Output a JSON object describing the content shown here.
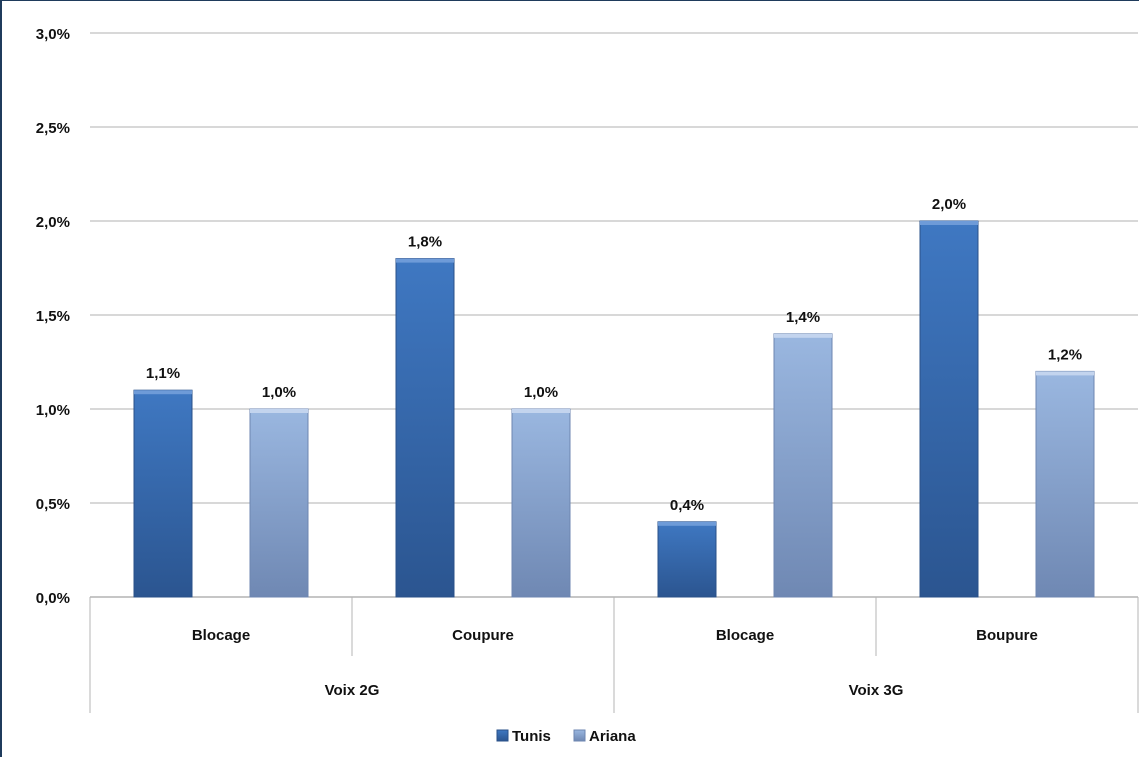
{
  "chart_data": {
    "type": "bar",
    "groups": [
      {
        "label": "Voix 2G",
        "categories": [
          "Blocage",
          "Coupure"
        ]
      },
      {
        "label": "Voix 3G",
        "categories": [
          "Blocage",
          "Boupure"
        ]
      }
    ],
    "categories": [
      "Blocage",
      "Coupure",
      "Blocage",
      "Boupure"
    ],
    "series": [
      {
        "name": "Tunis",
        "values": [
          1.1,
          1.8,
          0.4,
          2.0
        ],
        "labels": [
          "1,1%",
          "1,8%",
          "0,4%",
          "2,0%"
        ],
        "color": "#3a6db5"
      },
      {
        "name": "Ariana",
        "values": [
          1.0,
          1.0,
          1.4,
          1.2
        ],
        "labels": [
          "1,0%",
          "1,0%",
          "1,4%",
          "1,2%"
        ],
        "color": "#8eabd8"
      }
    ],
    "y_ticks": [
      0,
      0.5,
      1.0,
      1.5,
      2.0,
      2.5,
      3.0
    ],
    "y_tick_labels": [
      "0,0%",
      "0,5%",
      "1,0%",
      "1,5%",
      "2,0%",
      "2,5%",
      "3,0%"
    ],
    "ylim": [
      0,
      3.0
    ],
    "grid": true,
    "legend_position": "bottom"
  }
}
